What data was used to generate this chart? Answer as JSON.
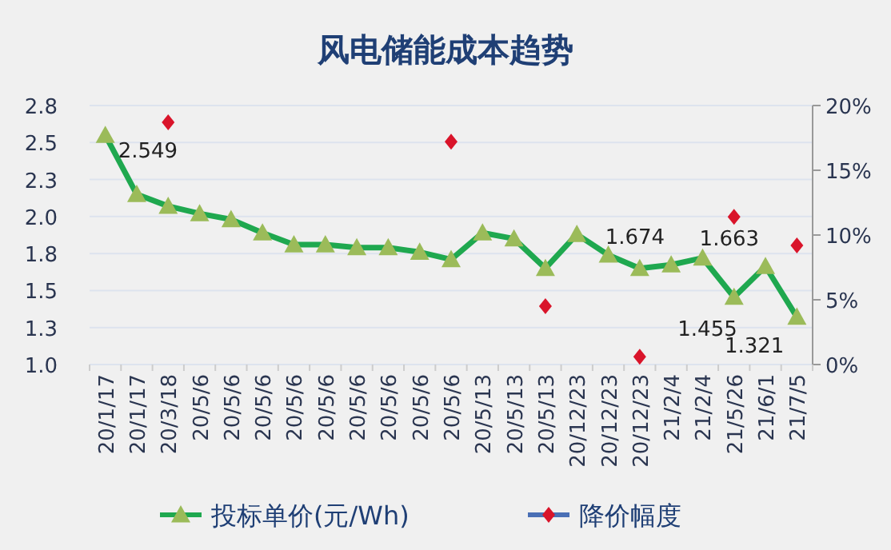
{
  "chart_data": {
    "type": "line",
    "title": "风电储能成本趋势",
    "categories": [
      "20/1/17",
      "20/1/17",
      "20/3/18",
      "20/5/6",
      "20/5/6",
      "20/5/6",
      "20/5/6",
      "20/5/6",
      "20/5/6",
      "20/5/6",
      "20/5/6",
      "20/5/6",
      "20/5/13",
      "20/5/13",
      "20/5/13",
      "20/12/23",
      "20/12/23",
      "20/12/23",
      "21/2/4",
      "21/2/4",
      "21/5/26",
      "21/6/1",
      "21/7/5"
    ],
    "series": [
      {
        "name": "投标单价(元/Wh)",
        "type": "line",
        "color": "#1fa84f",
        "marker": "triangle",
        "values": [
          2.549,
          2.15,
          2.07,
          2.02,
          1.98,
          1.89,
          1.81,
          1.81,
          1.79,
          1.79,
          1.76,
          1.71,
          1.89,
          1.85,
          1.65,
          1.88,
          1.74,
          1.65,
          1.674,
          1.72,
          1.455,
          1.663,
          1.321
        ],
        "value_labels": [
          "2.549",
          null,
          null,
          null,
          null,
          null,
          null,
          null,
          null,
          null,
          null,
          null,
          null,
          null,
          null,
          null,
          null,
          null,
          "1.674",
          null,
          "1.455",
          "1.663",
          "1.321"
        ]
      },
      {
        "name": "降价幅度",
        "type": "scatter",
        "axis": "y2",
        "color": "#d9142a",
        "marker": "diamond",
        "values": [
          null,
          null,
          18.7,
          null,
          null,
          null,
          null,
          null,
          null,
          null,
          null,
          17.2,
          null,
          null,
          4.5,
          null,
          null,
          0.6,
          null,
          null,
          11.4,
          null,
          9.2
        ]
      }
    ],
    "ylim": [
      1.0,
      2.75
    ],
    "yticks": [
      {
        "value": 1.0,
        "label": "1.0"
      },
      {
        "value": 1.25,
        "label": "1.3"
      },
      {
        "value": 1.5,
        "label": "1.5"
      },
      {
        "value": 1.75,
        "label": "1.8"
      },
      {
        "value": 2.0,
        "label": "2.0"
      },
      {
        "value": 2.25,
        "label": "2.3"
      },
      {
        "value": 2.5,
        "label": "2.5"
      },
      {
        "value": 2.75,
        "label": "2.8"
      }
    ],
    "y2lim": [
      0,
      20
    ],
    "y2ticks": [
      {
        "value": 0,
        "label": "0%"
      },
      {
        "value": 5,
        "label": "5%"
      },
      {
        "value": 10,
        "label": "10%"
      },
      {
        "value": 15,
        "label": "15%"
      },
      {
        "value": 20,
        "label": "20%"
      }
    ],
    "grid": "y",
    "legend": "bottom"
  }
}
